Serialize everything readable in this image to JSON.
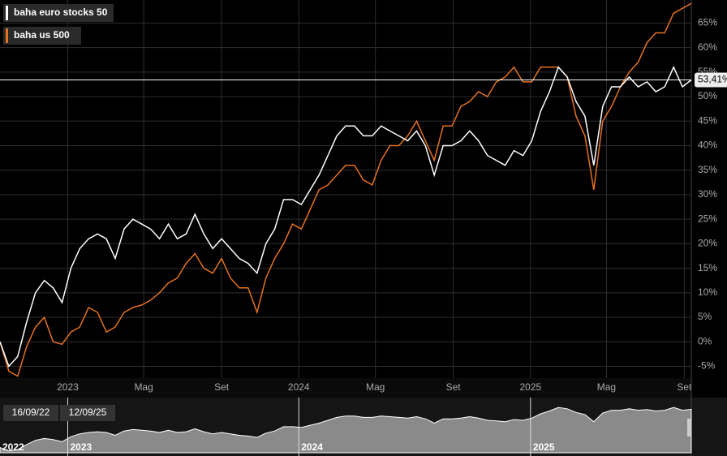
{
  "chart_data": {
    "type": "line",
    "x": [
      "2022-09-16",
      "2022-09-30",
      "2022-10-14",
      "2022-10-28",
      "2022-11-11",
      "2022-11-25",
      "2022-12-09",
      "2022-12-23",
      "2023-01-06",
      "2023-01-20",
      "2023-02-03",
      "2023-02-17",
      "2023-03-03",
      "2023-03-17",
      "2023-03-31",
      "2023-04-14",
      "2023-04-28",
      "2023-05-12",
      "2023-05-26",
      "2023-06-09",
      "2023-06-23",
      "2023-07-07",
      "2023-07-21",
      "2023-08-04",
      "2023-08-18",
      "2023-09-01",
      "2023-09-15",
      "2023-09-29",
      "2023-10-13",
      "2023-10-27",
      "2023-11-10",
      "2023-11-24",
      "2023-12-08",
      "2023-12-22",
      "2024-01-05",
      "2024-01-19",
      "2024-02-02",
      "2024-02-16",
      "2024-03-01",
      "2024-03-15",
      "2024-03-29",
      "2024-04-12",
      "2024-04-26",
      "2024-05-10",
      "2024-05-24",
      "2024-06-07",
      "2024-06-21",
      "2024-07-05",
      "2024-07-19",
      "2024-08-02",
      "2024-08-16",
      "2024-08-30",
      "2024-09-13",
      "2024-09-27",
      "2024-10-11",
      "2024-10-25",
      "2024-11-08",
      "2024-11-22",
      "2024-12-06",
      "2024-12-20",
      "2025-01-03",
      "2025-01-17",
      "2025-01-31",
      "2025-02-14",
      "2025-02-28",
      "2025-03-14",
      "2025-03-28",
      "2025-04-11",
      "2025-04-25",
      "2025-05-09",
      "2025-05-23",
      "2025-06-06",
      "2025-06-20",
      "2025-07-04",
      "2025-07-18",
      "2025-08-01",
      "2025-08-15",
      "2025-08-29",
      "2025-09-12"
    ],
    "series": [
      {
        "name": "baha euro stocks 50",
        "color": "#ffffff",
        "values": [
          0,
          -5,
          -3,
          4,
          10,
          12.5,
          11,
          8,
          15,
          19,
          21,
          22,
          21,
          17,
          23,
          25,
          24,
          23,
          21,
          24,
          21,
          22,
          26,
          22,
          19,
          21,
          19,
          17,
          16,
          14,
          20,
          23,
          29,
          29,
          28,
          31,
          34,
          38,
          42,
          44,
          44,
          42,
          42,
          44,
          43,
          42,
          41,
          43,
          40,
          34,
          40,
          40,
          41,
          43,
          41,
          38,
          37,
          36,
          39,
          38,
          41,
          47,
          51,
          56,
          54,
          49,
          46,
          36,
          48,
          52,
          52,
          54,
          52,
          53,
          51,
          52,
          56,
          52,
          53.41
        ]
      },
      {
        "name": "baha us 500",
        "color": "#e4711f",
        "values": [
          0,
          -6,
          -7,
          -1,
          3,
          5,
          0,
          -0.5,
          2,
          3,
          7,
          6,
          2,
          3,
          6,
          7,
          7.5,
          8.5,
          10,
          12,
          13,
          16,
          18,
          15,
          14,
          17,
          13,
          11,
          11,
          6,
          13,
          17,
          20,
          24,
          23,
          27,
          31,
          32,
          34,
          36,
          36,
          33,
          32,
          37,
          40,
          40,
          42,
          45,
          41,
          37,
          44,
          44,
          48,
          49,
          51,
          50,
          53,
          54,
          56,
          53,
          53,
          56,
          56,
          56,
          54,
          46,
          42,
          31,
          45,
          48,
          52,
          55,
          57,
          61,
          63,
          63,
          67,
          68,
          69
        ]
      }
    ],
    "xlim": [
      "2022-09-16",
      "2025-09-12"
    ],
    "xticks": [
      {
        "value": "2023-01-01",
        "label": "2023"
      },
      {
        "value": "2023-05-01",
        "label": "Mag"
      },
      {
        "value": "2023-09-01",
        "label": "Set"
      },
      {
        "value": "2024-01-01",
        "label": "2024"
      },
      {
        "value": "2024-05-01",
        "label": "Mag"
      },
      {
        "value": "2024-09-01",
        "label": "Set"
      },
      {
        "value": "2025-01-01",
        "label": "2025"
      },
      {
        "value": "2025-05-01",
        "label": "Mag"
      },
      {
        "value": "2025-09-01",
        "label": "Set"
      }
    ],
    "ylim": [
      -7.4,
      69.7
    ],
    "yticks": [
      {
        "value": -5,
        "label": "-5%"
      },
      {
        "value": 0,
        "label": "0%"
      },
      {
        "value": 5,
        "label": "5%"
      },
      {
        "value": 10,
        "label": "10%"
      },
      {
        "value": 15,
        "label": "15%"
      },
      {
        "value": 20,
        "label": "20%"
      },
      {
        "value": 25,
        "label": "25%"
      },
      {
        "value": 30,
        "label": "30%"
      },
      {
        "value": 35,
        "label": "35%"
      },
      {
        "value": 40,
        "label": "40%"
      },
      {
        "value": 45,
        "label": "45%"
      },
      {
        "value": 50,
        "label": "50%"
      },
      {
        "value": 55,
        "label": "55%"
      },
      {
        "value": 60,
        "label": "60%"
      },
      {
        "value": 65,
        "label": "65%"
      }
    ],
    "grid": true,
    "price_line": {
      "value": 53.41,
      "label": "53,41%"
    },
    "navigator": {
      "range_start": "16/09/22",
      "range_end": "12/09/25",
      "ticks": [
        {
          "value": "2022-09-16",
          "label": "2022"
        },
        {
          "value": "2023-01-01",
          "label": "2023"
        },
        {
          "value": "2024-01-01",
          "label": "2024"
        },
        {
          "value": "2025-01-01",
          "label": "2025"
        }
      ]
    }
  }
}
